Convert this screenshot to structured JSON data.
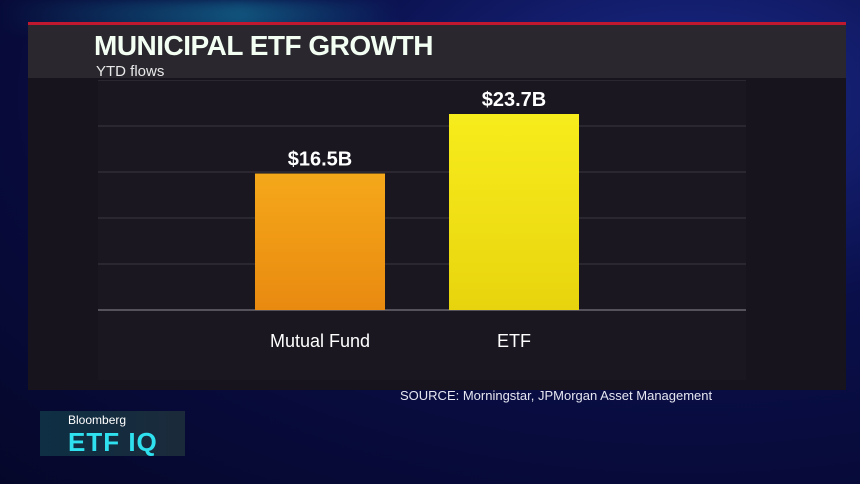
{
  "chart_data": {
    "type": "bar",
    "title": "MUNICIPAL ETF GROWTH",
    "subtitle": "YTD flows",
    "categories": [
      "Mutual Fund",
      "ETF"
    ],
    "values": [
      16.5,
      23.7
    ],
    "data_labels": [
      "$16.5B",
      "$23.7B"
    ],
    "unit": "$B",
    "ylim": [
      0,
      28
    ],
    "grid": true,
    "colors": [
      "#f5a81a",
      "#f7ec1c"
    ],
    "source": "SOURCE: Morningstar, JPMorgan Asset Management"
  },
  "branding": {
    "network": "Bloomberg",
    "show": "ETF IQ"
  }
}
